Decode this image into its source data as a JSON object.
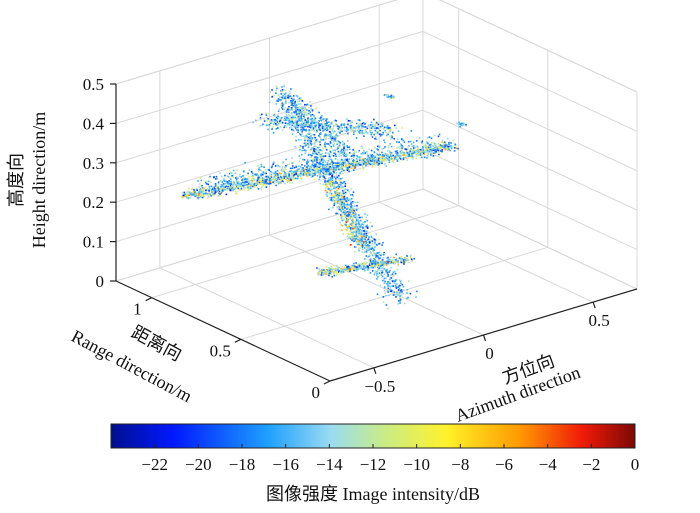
{
  "chart_data": {
    "type": "scatter3d",
    "title": "",
    "description_note": "3D volumetric radar image of an aircraft model, voxels colored by image intensity",
    "axes": {
      "height": {
        "label_cn": "高度向",
        "label_en": "Height direction/m",
        "range": [
          0,
          0.5
        ],
        "ticks": [
          0,
          0.1,
          0.2,
          0.3,
          0.4,
          0.5
        ],
        "tick_labels": [
          "0",
          "0.1",
          "0.2",
          "0.3",
          "0.4",
          "0.5"
        ]
      },
      "range": {
        "label_cn": "距离向",
        "label_en": "Range direction/m",
        "range": [
          0,
          1.2
        ],
        "ticks": [
          0,
          0.5,
          1
        ],
        "tick_labels": [
          "0",
          "0.5",
          "1"
        ]
      },
      "azimuth": {
        "label_cn": "方位向",
        "label_en": "Azimuth direction",
        "range": [
          -0.7,
          0.7
        ],
        "ticks": [
          -0.5,
          0,
          0.5
        ],
        "tick_labels": [
          "−0.5",
          "0",
          "0.5"
        ]
      }
    },
    "colorbar": {
      "label": "图像强度 Image intensity/dB",
      "range": [
        -24,
        0
      ],
      "ticks": [
        -22,
        -20,
        -18,
        -16,
        -14,
        -12,
        -10,
        -8,
        -6,
        -4,
        -2,
        0
      ],
      "tick_labels": [
        "−22",
        "−20",
        "−18",
        "−16",
        "−14",
        "−12",
        "−10",
        "−8",
        "−6",
        "−4",
        "−2",
        "0"
      ],
      "colormap": "jet"
    },
    "grid": true
  }
}
